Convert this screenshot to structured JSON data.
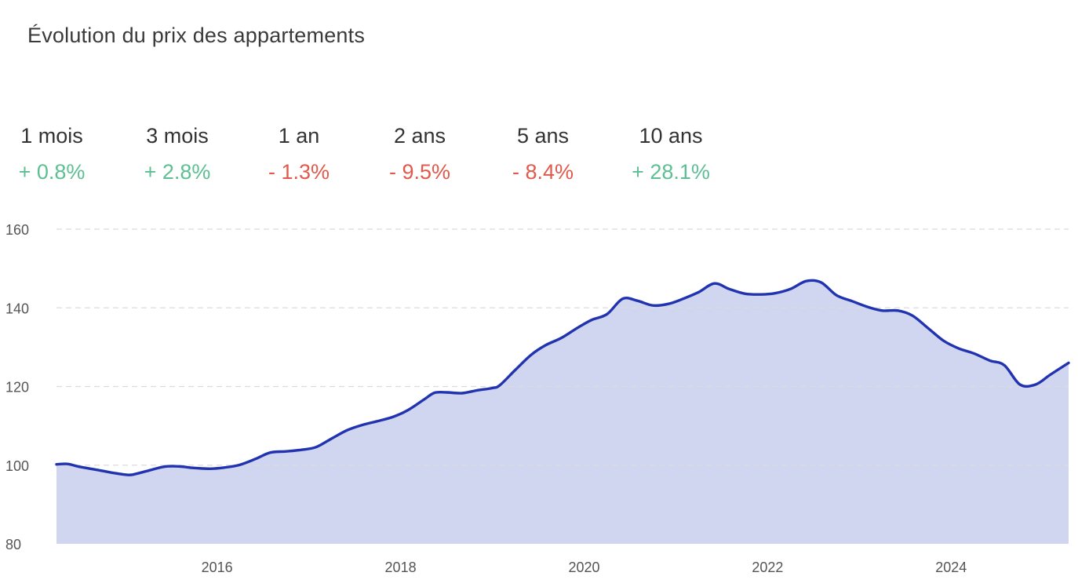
{
  "title": "Évolution du prix des appartements",
  "colors": {
    "positive": "#5dbf93",
    "negative": "#e0594b",
    "line": "#2233b0",
    "area": "#d0d6f0",
    "grid": "#dcdcdc",
    "axis_text": "#555555"
  },
  "stats": [
    {
      "period": "1 mois",
      "change": "+ 0.8%",
      "trend": "positive"
    },
    {
      "period": "3 mois",
      "change": "+ 2.8%",
      "trend": "positive"
    },
    {
      "period": "1 an",
      "change": "- 1.3%",
      "trend": "negative"
    },
    {
      "period": "2 ans",
      "change": "- 9.5%",
      "trend": "negative"
    },
    {
      "period": "5 ans",
      "change": "- 8.4%",
      "trend": "negative"
    },
    {
      "period": "10 ans",
      "change": "+ 28.1%",
      "trend": "positive"
    }
  ],
  "chart_data": {
    "type": "area",
    "title": "Évolution du prix des appartements",
    "xlabel": "",
    "ylabel": "",
    "xlim": [
      2014.25,
      2025.28
    ],
    "ylim": [
      80,
      160
    ],
    "y_ticks": [
      "80",
      "100",
      "120",
      "140",
      "160"
    ],
    "x_ticks": [
      "2016",
      "2018",
      "2020",
      "2022",
      "2024"
    ],
    "grid": true,
    "legend": "none",
    "series": [
      {
        "x": [
          2014.25,
          2014.37,
          2014.5,
          2014.67,
          2014.83,
          2015.0,
          2015.08,
          2015.25,
          2015.42,
          2015.58,
          2015.75,
          2015.92,
          2016.08,
          2016.25,
          2016.42,
          2016.58,
          2016.75,
          2016.92,
          2017.08,
          2017.25,
          2017.42,
          2017.58,
          2017.75,
          2017.92,
          2018.08,
          2018.25,
          2018.37,
          2018.5,
          2018.67,
          2018.83,
          2019.0,
          2019.08,
          2019.25,
          2019.42,
          2019.58,
          2019.75,
          2019.92,
          2020.08,
          2020.25,
          2020.42,
          2020.58,
          2020.75,
          2020.92,
          2021.08,
          2021.25,
          2021.42,
          2021.58,
          2021.75,
          2021.92,
          2022.08,
          2022.25,
          2022.42,
          2022.58,
          2022.75,
          2022.92,
          2023.08,
          2023.25,
          2023.42,
          2023.58,
          2023.75,
          2023.92,
          2024.08,
          2024.25,
          2024.42,
          2024.58,
          2024.75,
          2024.92,
          2025.08,
          2025.28
        ],
        "values": [
          100.2,
          100.3,
          99.6,
          98.9,
          98.2,
          97.6,
          97.6,
          98.6,
          99.6,
          99.7,
          99.3,
          99.1,
          99.4,
          100.1,
          101.6,
          103.2,
          103.5,
          103.9,
          104.6,
          106.8,
          108.9,
          110.2,
          111.2,
          112.3,
          114.0,
          116.6,
          118.4,
          118.5,
          118.3,
          119.0,
          119.6,
          120.3,
          124.2,
          128.0,
          130.5,
          132.3,
          134.8,
          136.9,
          138.4,
          142.3,
          141.8,
          140.6,
          141.0,
          142.3,
          144.0,
          146.2,
          144.8,
          143.6,
          143.4,
          143.7,
          144.8,
          146.8,
          146.5,
          143.2,
          141.7,
          140.3,
          139.3,
          139.3,
          138.0,
          134.8,
          131.6,
          129.7,
          128.4,
          126.6,
          125.4,
          120.5,
          120.5,
          123.0,
          126.0
        ]
      }
    ]
  }
}
